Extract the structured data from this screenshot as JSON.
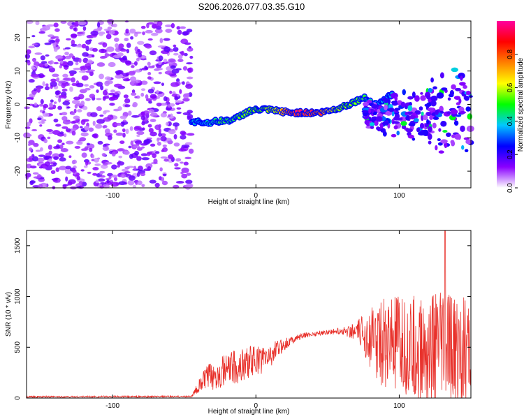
{
  "figure_title": "S206.2026.077.03.35.G10",
  "chart_data": [
    {
      "type": "heatmap",
      "title": "S206.2026.077.03.35.G10",
      "xlabel": "Height of straight line (km)",
      "ylabel": "Frequency (Hz)",
      "xlim": [
        -160,
        150
      ],
      "ylim": [
        -25,
        25
      ],
      "xticks": [
        -100,
        0,
        100
      ],
      "yticks": [
        -20,
        -10,
        0,
        10,
        20
      ],
      "colorbar": {
        "label": "Normalized spectral amplitude",
        "range": [
          0,
          1
        ],
        "ticks": [
          "0.0",
          "0.2",
          "0.4",
          "0.6",
          "0.8"
        ],
        "colors": [
          "#ffffff",
          "#8a00ff",
          "#0000ff",
          "#00c8ff",
          "#00ff00",
          "#ffff00",
          "#ff8000",
          "#ff0000",
          "#ff00a0"
        ]
      },
      "noise_region_x": [
        -160,
        -45
      ],
      "ridge": {
        "x": [
          -45,
          -35,
          -25,
          -15,
          -5,
          5,
          15,
          25,
          35,
          45,
          55,
          65,
          75,
          85,
          95
        ],
        "frequency": [
          -5,
          -5.5,
          -5,
          -4.5,
          -2,
          -1.5,
          -2,
          -2.5,
          -2.5,
          -2.5,
          -1.5,
          0,
          2,
          0,
          3
        ],
        "amplitude": [
          0.4,
          0.45,
          0.55,
          0.55,
          0.6,
          0.65,
          0.7,
          1.0,
          1.0,
          0.95,
          0.7,
          0.6,
          0.55,
          0.4,
          0.4
        ]
      },
      "scatter_region_x": [
        75,
        150
      ],
      "scatter_center_frequency": -3
    },
    {
      "type": "line",
      "title": "",
      "xlabel": "Height of straight line (km)",
      "ylabel": "SNR (10 * v/v)",
      "xlim": [
        -160,
        150
      ],
      "ylim": [
        0,
        1650
      ],
      "xticks": [
        -100,
        0,
        100
      ],
      "yticks": [
        0,
        500,
        1000,
        1500
      ],
      "series": [
        {
          "name": "SNR",
          "color": "#e8302a",
          "x": [
            -160,
            -140,
            -120,
            -100,
            -80,
            -60,
            -45,
            -35,
            -30,
            -25,
            -20,
            -15,
            -10,
            -5,
            0,
            5,
            10,
            15,
            20,
            25,
            30,
            35,
            40,
            45,
            50,
            55,
            60,
            65,
            70,
            75,
            80,
            85,
            90,
            95,
            100,
            105,
            110,
            115,
            120,
            125,
            130,
            135,
            140,
            145,
            150
          ],
          "base": [
            12,
            12,
            13,
            14,
            13,
            14,
            15,
            200,
            220,
            250,
            280,
            300,
            320,
            360,
            370,
            380,
            420,
            480,
            530,
            570,
            600,
            620,
            630,
            640,
            650,
            655,
            660,
            660,
            650,
            640,
            590,
            560,
            540,
            520,
            500,
            480,
            470,
            460,
            460,
            470,
            480,
            470,
            460,
            450,
            440
          ],
          "spread": [
            8,
            8,
            8,
            8,
            8,
            8,
            8,
            120,
            140,
            150,
            160,
            170,
            170,
            160,
            150,
            140,
            120,
            90,
            60,
            40,
            30,
            25,
            25,
            25,
            25,
            30,
            40,
            60,
            90,
            200,
            300,
            400,
            450,
            480,
            500,
            520,
            540,
            560,
            570,
            580,
            590,
            580,
            560,
            540,
            520
          ],
          "peak": {
            "x": 132,
            "y": 1650
          }
        }
      ]
    }
  ]
}
